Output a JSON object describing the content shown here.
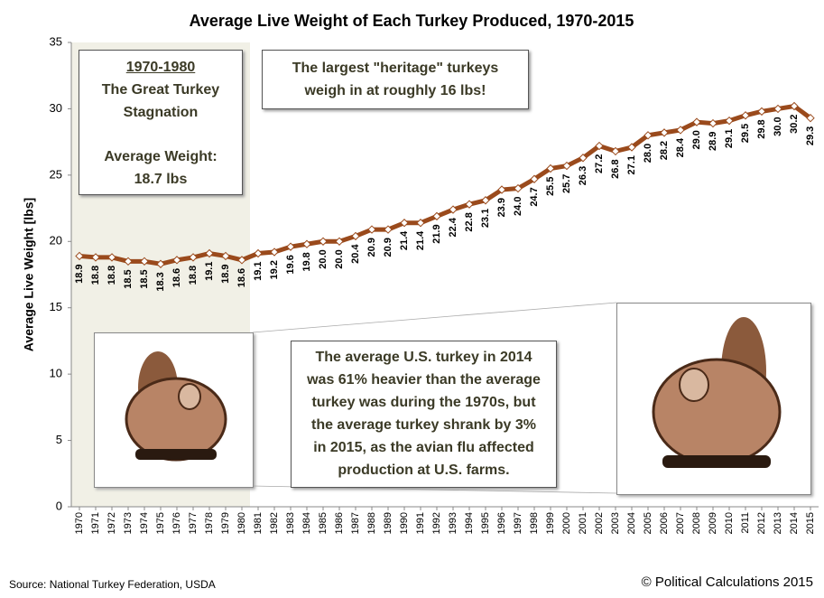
{
  "chart_data": {
    "type": "line",
    "title": "Average Live Weight of Each Turkey Produced, 1970-2015",
    "y_label": "Average Live Weight [lbs]",
    "categories": [
      "1970",
      "1971",
      "1972",
      "1973",
      "1974",
      "1975",
      "1976",
      "1977",
      "1978",
      "1979",
      "1980",
      "1981",
      "1982",
      "1983",
      "1984",
      "1985",
      "1986",
      "1987",
      "1988",
      "1989",
      "1990",
      "1991",
      "1992",
      "1993",
      "1994",
      "1995",
      "1996",
      "1997",
      "1998",
      "1999",
      "2000",
      "2001",
      "2002",
      "2003",
      "2004",
      "2005",
      "2006",
      "2007",
      "2008",
      "2009",
      "2010",
      "2011",
      "2012",
      "2013",
      "2014",
      "2015"
    ],
    "values": [
      18.9,
      18.8,
      18.8,
      18.5,
      18.5,
      18.3,
      18.6,
      18.8,
      19.1,
      18.9,
      18.6,
      19.1,
      19.2,
      19.6,
      19.8,
      20.0,
      20.0,
      20.4,
      20.9,
      20.9,
      21.4,
      21.4,
      21.9,
      22.4,
      22.8,
      23.1,
      23.9,
      24.0,
      24.7,
      25.5,
      25.7,
      26.3,
      27.2,
      26.8,
      27.1,
      28.0,
      28.2,
      28.4,
      29.0,
      28.9,
      29.1,
      29.5,
      29.8,
      30.0,
      30.2,
      29.3
    ],
    "value_labels": [
      "18.9",
      "18.8",
      "18.8",
      "18.5",
      "18.5",
      "18.3",
      "18.6",
      "18.8",
      "19.1",
      "18.9",
      "18.6",
      "19.1",
      "19.2",
      "19.6",
      "19.8",
      "20.0",
      "20.0",
      "20.4",
      "20.9",
      "20.9",
      "21.4",
      "21.4",
      "21.9",
      "22.4",
      "22.8",
      "23.1",
      "23.9",
      "24.0",
      "24.7",
      "25.5",
      "25.7",
      "26.3",
      "27.2",
      "26.8",
      "27.1",
      "28.0",
      "28.2",
      "28.4",
      "29.0",
      "28.9",
      "29.1",
      "29.5",
      "29.8",
      "30.0",
      "30.2",
      "29.3"
    ],
    "color": "#9a4a1c",
    "ylim": [
      0,
      35
    ],
    "yticks": [
      0,
      5,
      10,
      15,
      20,
      25,
      30,
      35
    ],
    "annotations": [
      {
        "lines": [
          "1970-1980",
          "The Great Turkey",
          "Stagnation",
          "Average Weight:",
          "18.7 lbs"
        ]
      },
      {
        "lines": [
          "The largest \"heritage\" turkeys",
          "weigh in at roughly 16 lbs!"
        ]
      },
      {
        "lines": [
          "The average U.S. turkey in 2014",
          "was 61% heavier than the average",
          "turkey was during the 1970s, but",
          "the average turkey shrank by 3%",
          "in 2015, as the avian flu affected",
          "production at U.S. farms."
        ]
      }
    ],
    "source": "Source: National Turkey Federation, USDA",
    "credit": "© Political Calculations 2015"
  }
}
